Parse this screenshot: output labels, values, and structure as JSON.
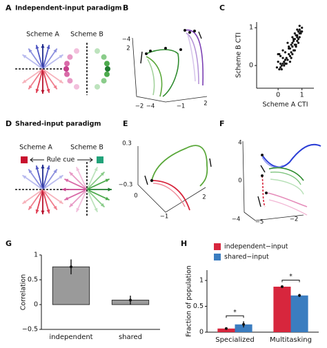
{
  "panels": {
    "letters": [
      "A",
      "B",
      "C",
      "D",
      "E",
      "F",
      "G",
      "H"
    ],
    "A": {
      "title": "Independent-input paradigm",
      "scheme_a": "Scheme A",
      "scheme_b": "Scheme B"
    },
    "B": {
      "ticks": [
        "−4",
        "2",
        "−2",
        "−4",
        "−1",
        "2"
      ]
    },
    "D": {
      "title": "Shared-input paradigm",
      "scheme_a": "Scheme A",
      "scheme_b": "Scheme B",
      "rule_cue": "Rule cue"
    },
    "E": {
      "ticks": [
        "0.3",
        "−0.3",
        "0",
        "−1",
        "2"
      ]
    },
    "F": {
      "ticks": [
        "4",
        "0",
        "−4",
        "−5",
        "−2"
      ]
    }
  },
  "chart_data": [
    {
      "type": "scatter",
      "xlabel": "Scheme A CTI",
      "ylabel": "Scheme B CTI",
      "color": "#111111",
      "x": [
        0.05,
        0.1,
        0.0,
        -0.05,
        0.15,
        0.2,
        0.1,
        0.25,
        0.3,
        0.05,
        0.35,
        0.4,
        0.3,
        0.45,
        0.5,
        0.2,
        0.55,
        0.6,
        0.5,
        0.65,
        0.7,
        0.6,
        0.75,
        0.8,
        0.7,
        0.85,
        0.9,
        0.8,
        0.95,
        1.0,
        0.9,
        0.15,
        0.3,
        0.45,
        0.55,
        0.65,
        0.75,
        0.85,
        0.4,
        0.6,
        0.7,
        0.8,
        0.9,
        1.0,
        0.5,
        0.35,
        0.25,
        0.65,
        0.75,
        0.85,
        0.95,
        0.55,
        0.45,
        0.0,
        0.1,
        0.2,
        0.7,
        0.8,
        0.9,
        0.6
      ],
      "values": [
        -0.1,
        0.05,
        0.1,
        -0.05,
        0.0,
        0.2,
        0.25,
        0.1,
        0.05,
        0.3,
        0.2,
        0.15,
        0.35,
        0.3,
        0.25,
        0.4,
        0.35,
        0.5,
        0.45,
        0.4,
        0.55,
        0.6,
        0.5,
        0.65,
        0.7,
        0.6,
        0.75,
        0.8,
        0.85,
        0.9,
        0.95,
        -0.1,
        0.15,
        0.45,
        0.55,
        0.7,
        0.8,
        0.9,
        0.6,
        0.3,
        0.4,
        0.75,
        0.85,
        1.0,
        0.1,
        0.05,
        0.0,
        0.65,
        0.55,
        0.7,
        0.9,
        0.2,
        0.5,
        0.3,
        -0.05,
        0.05,
        0.85,
        0.95,
        1.05,
        0.75
      ],
      "xlim": [
        -0.9,
        1.5
      ],
      "xticks": [
        0,
        1
      ],
      "ylim": [
        -0.6,
        1.15
      ],
      "yticks": [
        0,
        1
      ]
    },
    {
      "type": "bar",
      "ylabel": "Correlation",
      "categories": [
        "independent",
        "shared"
      ],
      "values": [
        0.76,
        0.09
      ],
      "errors": [
        0.15,
        0.09
      ],
      "color": "#9a9a9a",
      "ylim": [
        -0.5,
        1.0
      ],
      "yticks": [
        {
          "value": -0.5,
          "label": "−0.5"
        },
        0,
        0.5,
        1
      ]
    },
    {
      "type": "bar",
      "ylabel": "Fraction of population",
      "categories": [
        "Specialized",
        "Multitasking"
      ],
      "series": [
        {
          "name": "independent−input",
          "color": "#d7263d",
          "values": [
            0.07,
            0.88
          ],
          "errors": [
            0.01,
            0.02
          ]
        },
        {
          "name": "shared−input",
          "color": "#3b7dc0",
          "values": [
            0.15,
            0.71
          ],
          "errors": [
            0.06,
            0.03
          ]
        }
      ],
      "annotations": [
        "*",
        "*"
      ],
      "ylim": [
        0,
        1.2
      ],
      "yticks": [
        0,
        0.5,
        1
      ]
    }
  ]
}
